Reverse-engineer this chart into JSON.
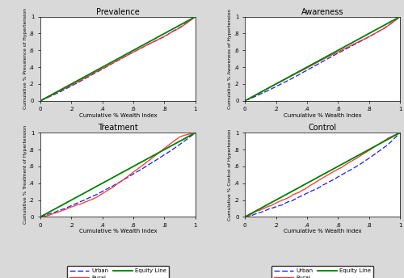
{
  "titles": [
    "Prevalence",
    "Awareness",
    "Treatment",
    "Control"
  ],
  "xlabel": "Cumulative % Wealth Index",
  "ylabels": [
    "Cumulative % Prevalence of Hypertension",
    "Cumulative % Awareness of Hypertension",
    "Cumulative % Treatment of Hypertension",
    "Cumulative % Control of Hypertension"
  ],
  "xticks": [
    0,
    0.2,
    0.4,
    0.6,
    0.8,
    1.0
  ],
  "xticklabels": [
    "0",
    ".2",
    ".4",
    ".6",
    ".8",
    "1"
  ],
  "yticks": [
    0,
    0.2,
    0.4,
    0.6,
    0.8,
    1.0
  ],
  "yticklabels": [
    "0",
    ".2",
    ".4",
    ".6",
    ".8",
    "1"
  ],
  "equity_color": "#008000",
  "urban_color": "#1a1aff",
  "rural_color": "#ff3333",
  "equity_lw": 1.3,
  "urban_lw": 0.9,
  "rural_lw": 0.9,
  "bg_color": "#d9d9d9",
  "plot_bg": "#ffffff",
  "legend_labels": [
    "Urban",
    "Rural",
    "Equity Line"
  ],
  "prevalence_urban_x": [
    0,
    0.05,
    0.1,
    0.15,
    0.2,
    0.25,
    0.3,
    0.35,
    0.4,
    0.45,
    0.5,
    0.55,
    0.6,
    0.65,
    0.7,
    0.75,
    0.8,
    0.85,
    0.9,
    0.95,
    1.0
  ],
  "prevalence_urban_y": [
    0,
    0.042,
    0.085,
    0.13,
    0.178,
    0.228,
    0.278,
    0.328,
    0.378,
    0.428,
    0.478,
    0.528,
    0.578,
    0.625,
    0.672,
    0.718,
    0.762,
    0.822,
    0.872,
    0.935,
    1.0
  ],
  "prevalence_rural_x": [
    0,
    0.05,
    0.1,
    0.15,
    0.2,
    0.25,
    0.3,
    0.35,
    0.4,
    0.45,
    0.5,
    0.55,
    0.6,
    0.65,
    0.7,
    0.75,
    0.8,
    0.85,
    0.9,
    0.95,
    1.0
  ],
  "prevalence_rural_y": [
    0,
    0.048,
    0.095,
    0.143,
    0.192,
    0.24,
    0.289,
    0.338,
    0.387,
    0.436,
    0.486,
    0.536,
    0.583,
    0.63,
    0.677,
    0.722,
    0.768,
    0.82,
    0.868,
    0.932,
    1.0
  ],
  "awareness_urban_x": [
    0,
    0.05,
    0.1,
    0.15,
    0.2,
    0.25,
    0.3,
    0.35,
    0.4,
    0.45,
    0.5,
    0.55,
    0.6,
    0.65,
    0.7,
    0.75,
    0.8,
    0.85,
    0.9,
    0.95,
    1.0
  ],
  "awareness_urban_y": [
    0,
    0.04,
    0.082,
    0.126,
    0.172,
    0.22,
    0.27,
    0.32,
    0.37,
    0.42,
    0.47,
    0.52,
    0.57,
    0.618,
    0.666,
    0.714,
    0.762,
    0.815,
    0.866,
    0.93,
    1.0
  ],
  "awareness_rural_x": [
    0,
    0.05,
    0.1,
    0.15,
    0.2,
    0.25,
    0.3,
    0.35,
    0.4,
    0.45,
    0.5,
    0.55,
    0.6,
    0.65,
    0.7,
    0.75,
    0.8,
    0.85,
    0.9,
    0.95,
    1.0
  ],
  "awareness_rural_y": [
    0,
    0.052,
    0.102,
    0.15,
    0.198,
    0.246,
    0.294,
    0.342,
    0.39,
    0.438,
    0.486,
    0.534,
    0.58,
    0.626,
    0.672,
    0.716,
    0.76,
    0.812,
    0.862,
    0.928,
    1.0
  ],
  "treatment_urban_x": [
    0,
    0.03,
    0.06,
    0.1,
    0.13,
    0.16,
    0.2,
    0.23,
    0.26,
    0.3,
    0.33,
    0.36,
    0.4,
    0.43,
    0.46,
    0.5,
    0.53,
    0.56,
    0.6,
    0.63,
    0.66,
    0.7,
    0.73,
    0.76,
    0.8,
    0.83,
    0.86,
    0.9,
    0.93,
    0.96,
    1.0
  ],
  "treatment_urban_y": [
    0,
    0.018,
    0.038,
    0.062,
    0.085,
    0.108,
    0.136,
    0.162,
    0.185,
    0.21,
    0.238,
    0.265,
    0.295,
    0.33,
    0.362,
    0.398,
    0.432,
    0.468,
    0.505,
    0.542,
    0.578,
    0.618,
    0.655,
    0.695,
    0.735,
    0.775,
    0.818,
    0.862,
    0.905,
    0.952,
    1.0
  ],
  "treatment_rural_x": [
    0,
    0.03,
    0.06,
    0.1,
    0.13,
    0.16,
    0.2,
    0.23,
    0.26,
    0.3,
    0.33,
    0.36,
    0.4,
    0.43,
    0.46,
    0.5,
    0.53,
    0.56,
    0.6,
    0.63,
    0.66,
    0.7,
    0.73,
    0.76,
    0.8,
    0.83,
    0.86,
    0.9,
    0.93,
    0.96,
    1.0
  ],
  "treatment_rural_y": [
    0,
    0.012,
    0.025,
    0.042,
    0.062,
    0.082,
    0.108,
    0.13,
    0.152,
    0.178,
    0.205,
    0.232,
    0.268,
    0.305,
    0.345,
    0.388,
    0.432,
    0.478,
    0.528,
    0.572,
    0.618,
    0.665,
    0.715,
    0.762,
    0.812,
    0.86,
    0.908,
    0.952,
    0.972,
    0.986,
    1.0
  ],
  "control_urban_x": [
    0,
    0.04,
    0.08,
    0.12,
    0.16,
    0.2,
    0.24,
    0.28,
    0.32,
    0.36,
    0.4,
    0.44,
    0.48,
    0.52,
    0.56,
    0.6,
    0.64,
    0.68,
    0.72,
    0.76,
    0.8,
    0.84,
    0.88,
    0.92,
    0.96,
    1.0
  ],
  "control_urban_y": [
    0,
    0.02,
    0.045,
    0.072,
    0.1,
    0.128,
    0.158,
    0.188,
    0.218,
    0.252,
    0.288,
    0.325,
    0.362,
    0.4,
    0.438,
    0.478,
    0.518,
    0.558,
    0.6,
    0.645,
    0.695,
    0.748,
    0.8,
    0.855,
    0.925,
    1.0
  ],
  "control_rural_x": [
    0,
    0.04,
    0.08,
    0.12,
    0.16,
    0.2,
    0.24,
    0.28,
    0.32,
    0.36,
    0.4,
    0.44,
    0.48,
    0.52,
    0.56,
    0.6,
    0.64,
    0.68,
    0.72,
    0.76,
    0.8,
    0.84,
    0.88,
    0.92,
    0.96,
    1.0
  ],
  "control_rural_y": [
    0,
    0.03,
    0.062,
    0.094,
    0.126,
    0.158,
    0.192,
    0.228,
    0.268,
    0.308,
    0.35,
    0.392,
    0.435,
    0.478,
    0.52,
    0.562,
    0.605,
    0.648,
    0.692,
    0.738,
    0.785,
    0.835,
    0.882,
    0.932,
    0.968,
    1.0
  ]
}
